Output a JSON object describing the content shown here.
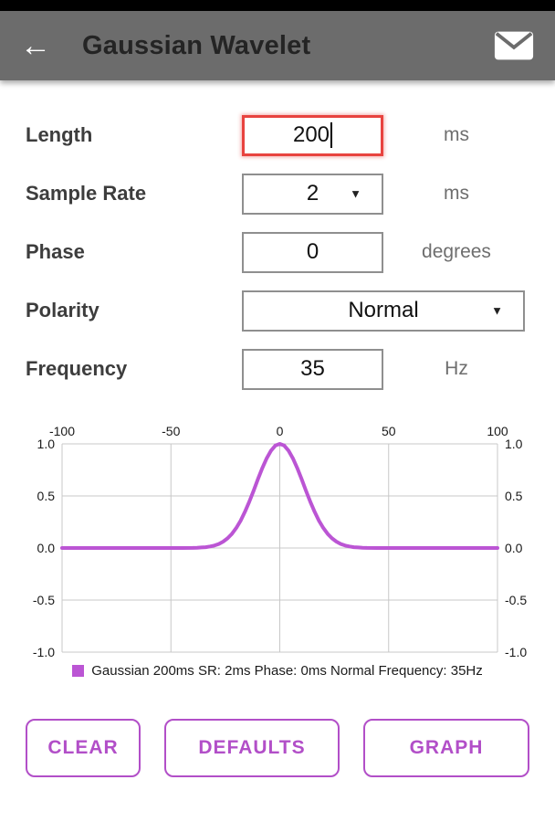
{
  "app_bar": {
    "title": "Gaussian Wavelet",
    "back_icon": "←"
  },
  "form": {
    "rows": [
      {
        "label": "Length",
        "value": "200",
        "unit": "ms",
        "type": "input",
        "state": "focused"
      },
      {
        "label": "Sample Rate",
        "value": "2",
        "unit": "ms",
        "type": "dropdown"
      },
      {
        "label": "Phase",
        "value": "0",
        "unit": "degrees",
        "type": "input"
      },
      {
        "label": "Polarity",
        "value": "Normal",
        "unit": "",
        "type": "dropdown"
      },
      {
        "label": "Frequency",
        "value": "35",
        "unit": "Hz",
        "type": "input"
      }
    ]
  },
  "chart_data": {
    "type": "line",
    "title": "",
    "xlabel": "",
    "ylabel": "",
    "xlim": [
      -100,
      100
    ],
    "ylim": [
      -1,
      1
    ],
    "x_ticks": [
      -100,
      -50,
      0,
      50,
      100
    ],
    "y_ticks": [
      1.0,
      0.5,
      0.0,
      -0.5,
      -1.0
    ],
    "grid": true,
    "legend_position": "bottom",
    "series": [
      {
        "name": "Gaussian 200ms SR: 2ms Phase: 0ms Normal Frequency: 35Hz",
        "color": "#bb55d4",
        "points": [
          [
            -100,
            0
          ],
          [
            -50,
            0
          ],
          [
            -45,
            0
          ],
          [
            -40,
            0.001
          ],
          [
            -38,
            0.003
          ],
          [
            -36,
            0.005
          ],
          [
            -34,
            0.008
          ],
          [
            -32,
            0.015
          ],
          [
            -30,
            0.024
          ],
          [
            -28,
            0.039
          ],
          [
            -26,
            0.061
          ],
          [
            -24,
            0.093
          ],
          [
            -22,
            0.135
          ],
          [
            -20,
            0.192
          ],
          [
            -18,
            0.262
          ],
          [
            -16,
            0.347
          ],
          [
            -14,
            0.445
          ],
          [
            -12,
            0.552
          ],
          [
            -10,
            0.662
          ],
          [
            -8,
            0.768
          ],
          [
            -6,
            0.862
          ],
          [
            -4,
            0.936
          ],
          [
            -2,
            0.984
          ],
          [
            0,
            1.0
          ],
          [
            2,
            0.984
          ],
          [
            4,
            0.936
          ],
          [
            6,
            0.862
          ],
          [
            8,
            0.768
          ],
          [
            10,
            0.662
          ],
          [
            12,
            0.552
          ],
          [
            14,
            0.445
          ],
          [
            16,
            0.347
          ],
          [
            18,
            0.262
          ],
          [
            20,
            0.192
          ],
          [
            22,
            0.135
          ],
          [
            24,
            0.093
          ],
          [
            26,
            0.061
          ],
          [
            28,
            0.039
          ],
          [
            30,
            0.024
          ],
          [
            32,
            0.015
          ],
          [
            34,
            0.008
          ],
          [
            36,
            0.005
          ],
          [
            38,
            0.003
          ],
          [
            40,
            0.001
          ],
          [
            45,
            0
          ],
          [
            50,
            0
          ],
          [
            100,
            0
          ]
        ]
      }
    ]
  },
  "buttons": [
    {
      "label": "CLEAR"
    },
    {
      "label": "DEFAULTS"
    },
    {
      "label": "GRAPH"
    }
  ],
  "colors": {
    "accent": "#b24fc8",
    "app_bar": "#6c6c6c",
    "error_border": "#e8433f",
    "curve": "#bb55d4"
  }
}
